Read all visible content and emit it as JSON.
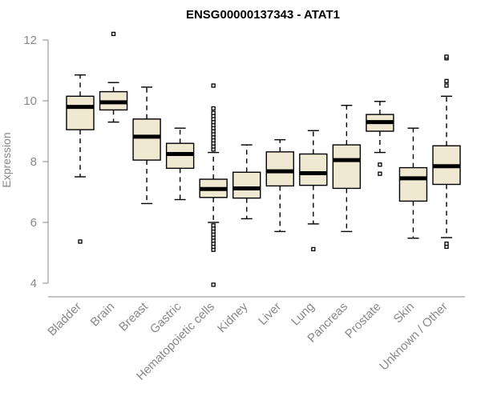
{
  "chart_data": {
    "type": "box",
    "title": "ENSG00000137343 - ATAT1",
    "xlabel": "",
    "ylabel": "Expression",
    "ylim": [
      4,
      12
    ],
    "yticks": [
      4,
      6,
      8,
      10,
      12
    ],
    "grid": false,
    "categories": [
      "Bladder",
      "Brain",
      "Breast",
      "Gastric",
      "Hematopoietic cells",
      "Kidney",
      "Liver",
      "Lung",
      "Pancreas",
      "Prostate",
      "Skin",
      "Unknown / Other"
    ],
    "boxes": [
      {
        "category": "Bladder",
        "whisker_low": 7.5,
        "q1": 9.05,
        "median": 9.8,
        "q3": 10.15,
        "whisker_high": 10.85,
        "outliers": [
          5.37
        ]
      },
      {
        "category": "Brain",
        "whisker_low": 9.3,
        "q1": 9.7,
        "median": 9.95,
        "q3": 10.3,
        "whisker_high": 10.6,
        "outliers": [
          12.2
        ]
      },
      {
        "category": "Breast",
        "whisker_low": 6.62,
        "q1": 8.05,
        "median": 8.82,
        "q3": 9.4,
        "whisker_high": 10.45,
        "outliers": []
      },
      {
        "category": "Gastric",
        "whisker_low": 6.75,
        "q1": 7.78,
        "median": 8.25,
        "q3": 8.6,
        "whisker_high": 9.1,
        "outliers": []
      },
      {
        "category": "Hematopoietic cells",
        "whisker_low": 6.0,
        "q1": 6.82,
        "median": 7.1,
        "q3": 7.42,
        "whisker_high": 8.3,
        "outliers": [
          3.95,
          5.1,
          5.2,
          5.3,
          5.4,
          5.5,
          5.6,
          5.7,
          5.8,
          5.9,
          8.4,
          8.5,
          8.6,
          8.7,
          8.8,
          8.9,
          9.0,
          9.1,
          9.2,
          9.3,
          9.4,
          9.5,
          9.6,
          9.75,
          10.5
        ]
      },
      {
        "category": "Kidney",
        "whisker_low": 6.12,
        "q1": 6.8,
        "median": 7.12,
        "q3": 7.65,
        "whisker_high": 8.55,
        "outliers": []
      },
      {
        "category": "Liver",
        "whisker_low": 5.7,
        "q1": 7.2,
        "median": 7.68,
        "q3": 8.32,
        "whisker_high": 8.72,
        "outliers": []
      },
      {
        "category": "Lung",
        "whisker_low": 5.95,
        "q1": 7.22,
        "median": 7.62,
        "q3": 8.25,
        "whisker_high": 9.02,
        "outliers": [
          5.12
        ]
      },
      {
        "category": "Pancreas",
        "whisker_low": 5.7,
        "q1": 7.12,
        "median": 8.05,
        "q3": 8.55,
        "whisker_high": 9.85,
        "outliers": []
      },
      {
        "category": "Prostate",
        "whisker_low": 8.3,
        "q1": 9.0,
        "median": 9.3,
        "q3": 9.55,
        "whisker_high": 9.98,
        "outliers": [
          7.6,
          7.9
        ]
      },
      {
        "category": "Skin",
        "whisker_low": 5.48,
        "q1": 6.7,
        "median": 7.45,
        "q3": 7.8,
        "whisker_high": 9.1,
        "outliers": []
      },
      {
        "category": "Unknown / Other",
        "whisker_low": 5.5,
        "q1": 7.25,
        "median": 7.85,
        "q3": 8.52,
        "whisker_high": 10.15,
        "outliers": [
          5.2,
          5.3,
          10.5,
          10.65,
          11.4,
          11.45
        ]
      }
    ],
    "box_fill": "#efe9d2",
    "box_stroke": "#000000",
    "axis_color": "#888888"
  }
}
